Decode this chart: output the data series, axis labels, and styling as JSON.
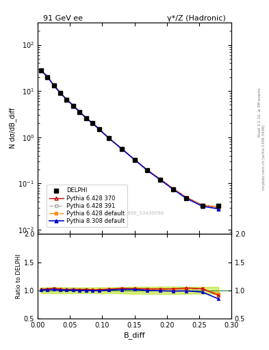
{
  "title_left": "91 GeV ee",
  "title_right": "γ*/Z (Hadronic)",
  "ylabel_main": "N dσ/dB_diff",
  "ylabel_ratio": "Ratio to DELPHI",
  "xlabel": "B_diff",
  "watermark": "DELPHI_1996_S3430090",
  "right_label_top": "Rivet 3.1.10, ≥ 3M events",
  "right_label_bot": "mcplots.cern.ch [arXiv:1306.3436]",
  "xlim": [
    0.0,
    0.3
  ],
  "ylim_main": [
    0.008,
    300
  ],
  "ylim_ratio": [
    0.5,
    2.0
  ],
  "ratio_yticks": [
    0.5,
    1.0,
    1.5,
    2.0
  ],
  "x_data": [
    0.005,
    0.015,
    0.025,
    0.035,
    0.045,
    0.055,
    0.065,
    0.075,
    0.085,
    0.095,
    0.11,
    0.13,
    0.15,
    0.17,
    0.19,
    0.21,
    0.23,
    0.255,
    0.28
  ],
  "delphi_y": [
    28.0,
    20.0,
    13.0,
    9.0,
    6.5,
    4.8,
    3.5,
    2.6,
    2.0,
    1.5,
    0.95,
    0.55,
    0.32,
    0.19,
    0.12,
    0.075,
    0.048,
    0.033,
    0.033
  ],
  "delphi_yerr": [
    1.5,
    1.0,
    0.7,
    0.5,
    0.35,
    0.25,
    0.18,
    0.13,
    0.1,
    0.08,
    0.05,
    0.03,
    0.02,
    0.012,
    0.008,
    0.005,
    0.003,
    0.002,
    0.002
  ],
  "py6_370_y": [
    28.5,
    20.5,
    13.5,
    9.2,
    6.6,
    4.9,
    3.55,
    2.65,
    2.02,
    1.52,
    0.97,
    0.57,
    0.33,
    0.195,
    0.123,
    0.077,
    0.05,
    0.034,
    0.03
  ],
  "py6_391_y": [
    28.3,
    20.3,
    13.3,
    9.1,
    6.55,
    4.85,
    3.52,
    2.62,
    2.01,
    1.51,
    0.96,
    0.565,
    0.328,
    0.193,
    0.121,
    0.076,
    0.0485,
    0.0335,
    0.0305
  ],
  "py6_def_y": [
    28.4,
    20.4,
    13.4,
    9.15,
    6.58,
    4.87,
    3.53,
    2.63,
    2.015,
    1.515,
    0.965,
    0.568,
    0.33,
    0.194,
    0.122,
    0.0765,
    0.0488,
    0.034,
    0.031
  ],
  "py8_def_y": [
    28.2,
    20.2,
    13.2,
    9.05,
    6.52,
    4.82,
    3.5,
    2.6,
    1.99,
    1.49,
    0.955,
    0.558,
    0.325,
    0.19,
    0.119,
    0.074,
    0.0475,
    0.032,
    0.028
  ],
  "col_delphi": "#000000",
  "col_py6_370": "#cc0000",
  "col_py6_391": "#aaaaaa",
  "col_py6_def": "#ff8800",
  "col_py8_def": "#0000cc",
  "band_color": "#aadd00",
  "band_alpha": 0.5,
  "legend_order": [
    "DELPHI",
    "Pythia 6.428 370",
    "Pythia 6.428 391",
    "Pythia 6.428 default",
    "Pythia 8.308 default"
  ]
}
